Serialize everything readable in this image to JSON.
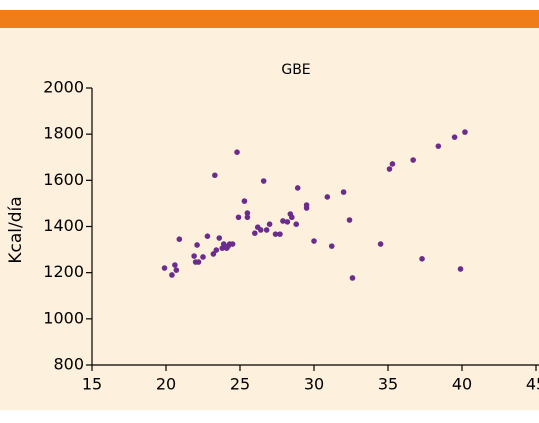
{
  "chart_data": {
    "type": "scatter",
    "title": "GBE",
    "y_label": "Kcal/día",
    "x": [
      19.9,
      20.4,
      20.6,
      20.7,
      20.9,
      21.9,
      22.0,
      22.1,
      22.2,
      22.5,
      22.8,
      23.2,
      23.3,
      23.4,
      23.6,
      23.8,
      23.9,
      24.1,
      24.2,
      24.3,
      24.5,
      24.8,
      24.9,
      25.3,
      25.5,
      25.5,
      26.0,
      26.2,
      26.4,
      26.6,
      26.8,
      27.0,
      27.4,
      27.7,
      27.9,
      28.2,
      28.4,
      28.5,
      28.8,
      28.9,
      29.5,
      29.5,
      30.0,
      30.9,
      31.2,
      32.0,
      32.4,
      32.6,
      34.5,
      35.1,
      35.3,
      36.7,
      37.3,
      38.4,
      39.5,
      39.9,
      40.2
    ],
    "values": [
      1220,
      1190,
      1233,
      1211,
      1345,
      1272,
      1246,
      1320,
      1246,
      1268,
      1358,
      1281,
      1622,
      1298,
      1350,
      1306,
      1324,
      1306,
      1315,
      1324,
      1324,
      1722,
      1440,
      1510,
      1458,
      1440,
      1371,
      1397,
      1385,
      1597,
      1385,
      1410,
      1367,
      1367,
      1424,
      1420,
      1454,
      1440,
      1410,
      1567,
      1493,
      1480,
      1337,
      1528,
      1315,
      1549,
      1428,
      1177,
      1324,
      1649,
      1671,
      1688,
      1260,
      1748,
      1787,
      1216,
      1809
    ],
    "color": "#6b2d8c",
    "xlim": [
      15,
      45
    ],
    "xticks": [
      15,
      20,
      25,
      30,
      35,
      40,
      45
    ],
    "ylim": [
      800,
      2000
    ],
    "yticks": [
      800,
      1000,
      1200,
      1400,
      1600,
      1800,
      2000
    ]
  }
}
